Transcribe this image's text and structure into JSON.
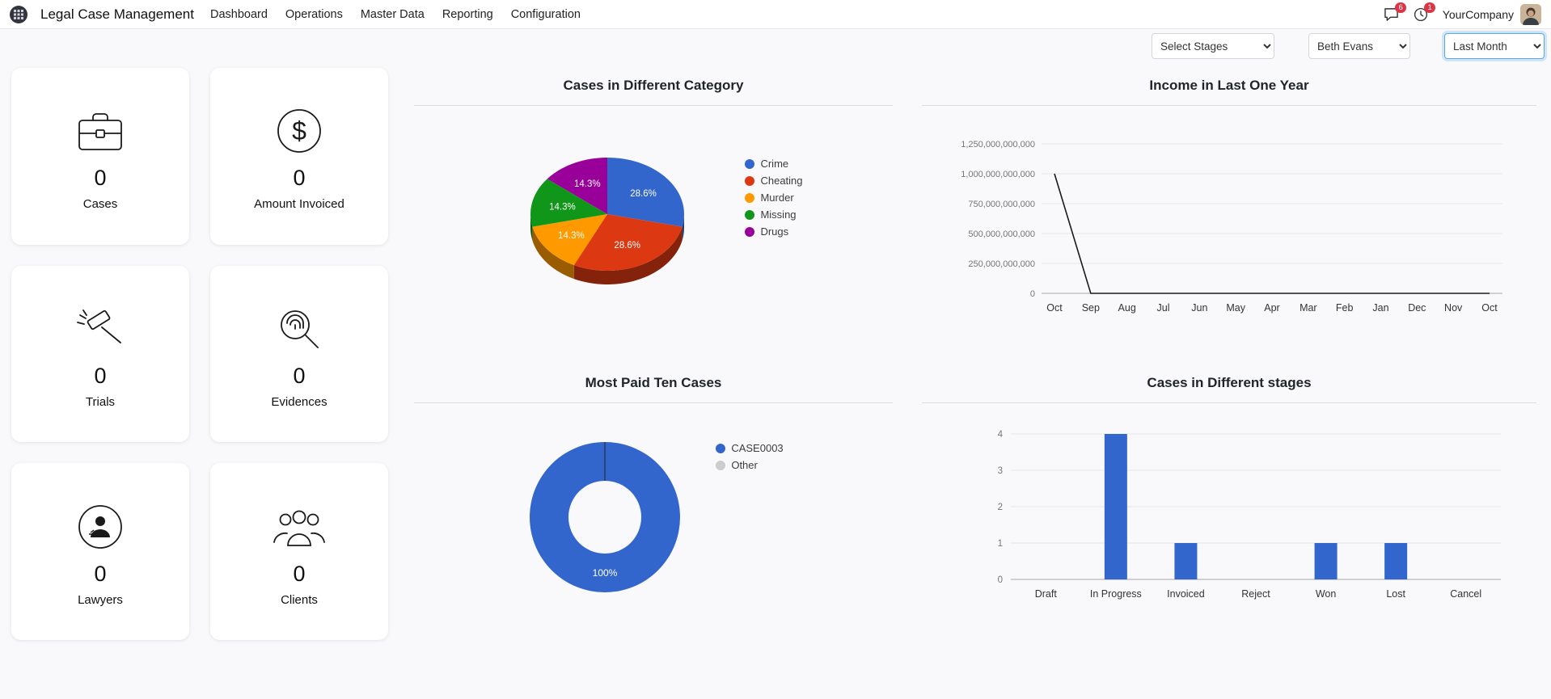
{
  "navbar": {
    "app_title": "Legal Case Management",
    "menu": [
      "Dashboard",
      "Operations",
      "Master Data",
      "Reporting",
      "Configuration"
    ],
    "messages_badge": "6",
    "activities_badge": "1",
    "company_name": "YourCompany"
  },
  "filters": {
    "stages": "Select Stages",
    "user": "Beth Evans",
    "period": "Last Month"
  },
  "kpis": [
    {
      "value": "0",
      "label": "Cases",
      "icon": "briefcase-icon"
    },
    {
      "value": "0",
      "label": "Amount Invoiced",
      "icon": "dollar-circle-icon"
    },
    {
      "value": "0",
      "label": "Trials",
      "icon": "gavel-icon"
    },
    {
      "value": "0",
      "label": "Evidences",
      "icon": "evidence-magnifier-icon"
    },
    {
      "value": "0",
      "label": "Lawyers",
      "icon": "lawyer-person-icon"
    },
    {
      "value": "0",
      "label": "Clients",
      "icon": "clients-group-icon"
    }
  ],
  "chart_data": [
    {
      "type": "pie",
      "style": "3d",
      "title": "Cases in Different Category",
      "labels": [
        "Crime",
        "Cheating",
        "Murder",
        "Missing",
        "Drugs"
      ],
      "values": [
        28.6,
        28.6,
        14.3,
        14.3,
        14.3
      ],
      "slice_labels": [
        "28.6%",
        "28.6%",
        "14.3%",
        "14.3%",
        "14.3%"
      ],
      "colors": [
        "#3366CC",
        "#DC3912",
        "#FF9900",
        "#109618",
        "#990099"
      ],
      "legend_position": "right"
    },
    {
      "type": "line",
      "title": "Income in Last One Year",
      "x": [
        "Oct",
        "Sep",
        "Aug",
        "Jul",
        "Jun",
        "May",
        "Apr",
        "Mar",
        "Feb",
        "Jan",
        "Dec",
        "Nov",
        "Oct"
      ],
      "values": [
        1000000000000,
        0,
        0,
        0,
        0,
        0,
        0,
        0,
        0,
        0,
        0,
        0,
        0
      ],
      "ylim": [
        0,
        1250000000000
      ],
      "ytick_labels": [
        "0",
        "250,000,000,000",
        "500,000,000,000",
        "750,000,000,000",
        "1,000,000,000,000",
        "1,250,000,000,000"
      ],
      "line_color": "#1a1a1a",
      "grid": true,
      "legend_position": "none"
    },
    {
      "type": "pie",
      "subtype": "donut",
      "title": "Most Paid Ten Cases",
      "labels": [
        "CASE0003",
        "Other"
      ],
      "values": [
        100,
        0
      ],
      "colors": [
        "#3366CC",
        "#CCCCCC"
      ],
      "center_label": "100%",
      "legend_position": "right"
    },
    {
      "type": "bar",
      "title": "Cases in Different stages",
      "categories": [
        "Draft",
        "In Progress",
        "Invoiced",
        "Reject",
        "Won",
        "Lost",
        "Cancel"
      ],
      "values": [
        0,
        4,
        1,
        0,
        1,
        1,
        0
      ],
      "ylim": [
        0,
        4
      ],
      "yticks": [
        0,
        1,
        2,
        3,
        4
      ],
      "bar_color": "#3366CC",
      "grid": true
    }
  ]
}
